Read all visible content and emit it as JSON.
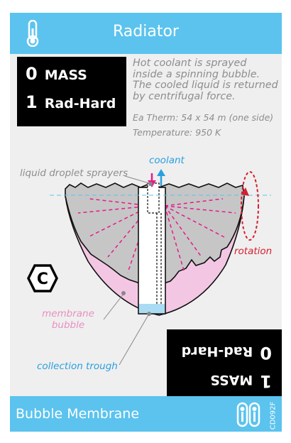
{
  "card": {
    "title": "Radiator",
    "stats": [
      {
        "value": "0",
        "label": "MASS"
      },
      {
        "value": "1",
        "label": "Rad-Hard"
      }
    ],
    "description": "Hot coolant is sprayed inside a spinning bubble. The cooled liquid is returned by centrifugal force.",
    "ea_therm": "Ea Therm: 54 x 54 m (one side)",
    "temperature": "Temperature: 950 K",
    "diagram_labels": {
      "coolant": "coolant",
      "sprayers": "liquid droplet sprayers",
      "rotation": "rotation",
      "membrane_line1": "membrane",
      "membrane_line2": "bubble",
      "trough": "collection trough"
    },
    "type_badge": "C",
    "flip_stats": [
      {
        "value": "0",
        "label": "Rad-Hard"
      },
      {
        "value": "1",
        "label": "MASS"
      }
    ],
    "name": "Bubble Membrane",
    "card_code": "CD092F",
    "colors": {
      "bar": "#5bc3ee",
      "coolant_in": "#e8198b",
      "coolant_out": "#2a9fe0",
      "rotation": "#d51f30",
      "membrane": "#f3c7e3"
    }
  }
}
